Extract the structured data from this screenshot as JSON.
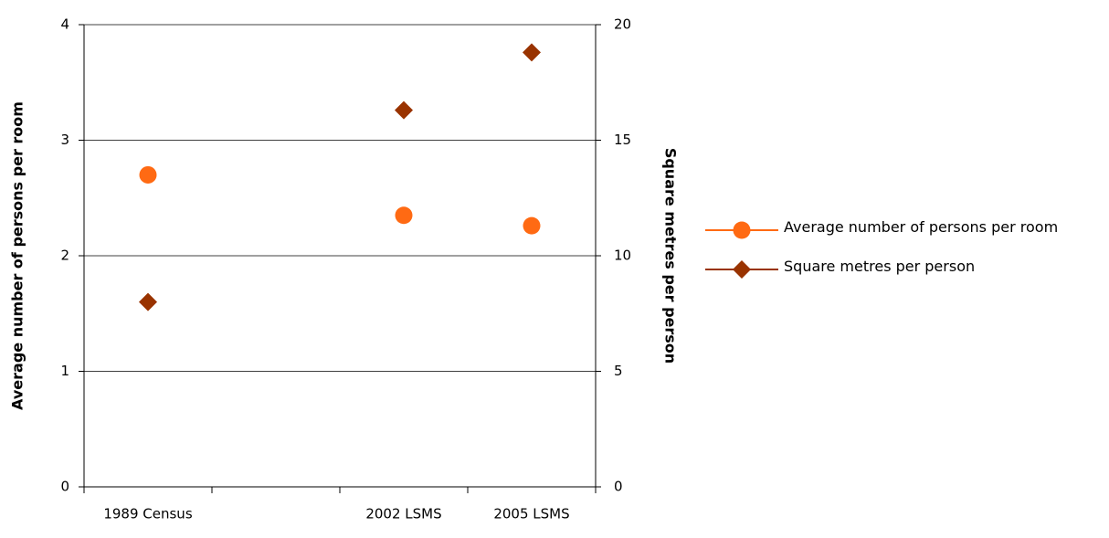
{
  "chart_data": {
    "type": "line",
    "show_lines": false,
    "categories": [
      "1989 Census",
      null,
      "2002 LSMS",
      "2005 LSMS"
    ],
    "y_label": "Average number of persons per room",
    "y2_label": "Square metres per person",
    "ylim": [
      0,
      4
    ],
    "yticks": [
      0,
      1,
      2,
      3,
      4
    ],
    "y2lim": [
      0,
      20
    ],
    "y2ticks": [
      0,
      5,
      10,
      15,
      20
    ],
    "grid": true,
    "legend": "right",
    "series": [
      {
        "name": "Average number of persons per room",
        "color": "#ff6a13",
        "marker": "circle",
        "values": [
          2.7,
          null,
          2.35,
          2.26
        ]
      },
      {
        "name": "Square metres per person",
        "color": "#993300",
        "marker": "diamond",
        "axis": "y2",
        "values": [
          8.0,
          null,
          16.3,
          18.8
        ]
      }
    ]
  }
}
